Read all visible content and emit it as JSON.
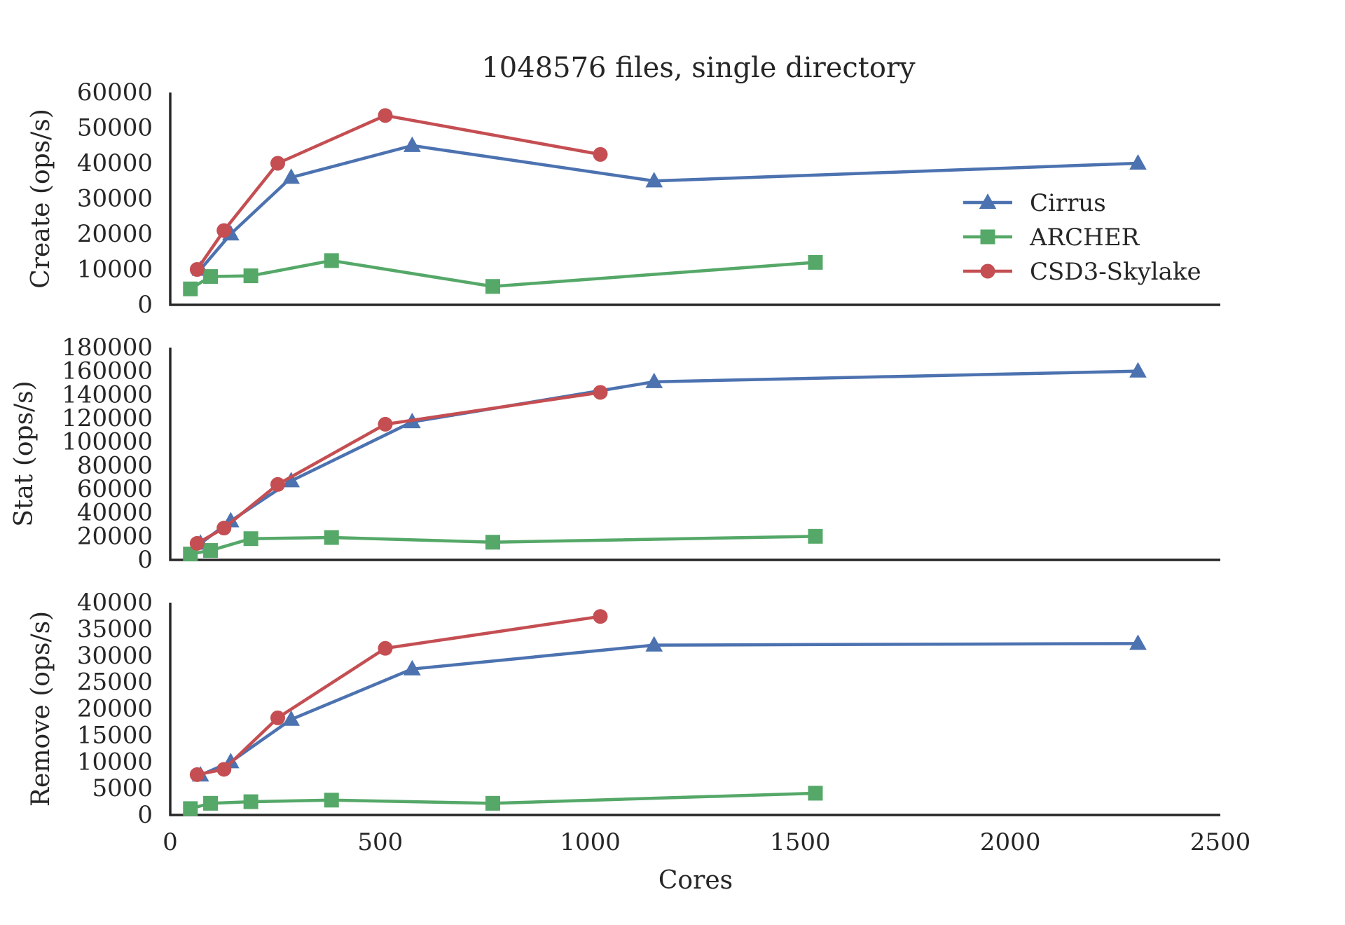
{
  "colors": {
    "text": "#262626",
    "axis": "#262626",
    "background": "#ffffff"
  },
  "chart_data": {
    "type": "line",
    "title": "1048576 files, single directory",
    "xlabel": "Cores",
    "xlim": [
      0,
      2500
    ],
    "xticks": [
      0,
      500,
      1000,
      1500,
      2000,
      2500
    ],
    "xtick_labels": [
      "0",
      "500",
      "1000",
      "1500",
      "2000",
      "2500"
    ],
    "grid": false,
    "legend": {
      "placement": "upper-right of top panel",
      "entries": [
        {
          "label": "Cirrus",
          "color": "#4c72b0",
          "marker": "triangle"
        },
        {
          "label": "ARCHER",
          "color": "#55a868",
          "marker": "square"
        },
        {
          "label": "CSD3-Skylake",
          "color": "#c44e52",
          "marker": "circle"
        }
      ]
    },
    "panels": [
      {
        "ylabel": "Create (ops/s)",
        "ylim": [
          0,
          60000
        ],
        "yticks": [
          0,
          10000,
          20000,
          30000,
          40000,
          50000,
          60000
        ],
        "ytick_labels": [
          "0",
          "10000",
          "20000",
          "30000",
          "40000",
          "50000",
          "60000"
        ],
        "series": [
          {
            "name": "Cirrus",
            "color": "#4c72b0",
            "marker": "triangle",
            "points": [
              [
                72,
                10000
              ],
              [
                144,
                20000
              ],
              [
                288,
                36000
              ],
              [
                576,
                45000
              ],
              [
                1152,
                35000
              ],
              [
                2304,
                40000
              ]
            ]
          },
          {
            "name": "ARCHER",
            "color": "#55a868",
            "marker": "square",
            "points": [
              [
                48,
                4500
              ],
              [
                96,
                8000
              ],
              [
                192,
                8200
              ],
              [
                384,
                12500
              ],
              [
                768,
                5200
              ],
              [
                1536,
                12000
              ]
            ]
          },
          {
            "name": "CSD3-Skylake",
            "color": "#c44e52",
            "marker": "circle",
            "points": [
              [
                64,
                10000
              ],
              [
                128,
                21000
              ],
              [
                256,
                40000
              ],
              [
                512,
                53500
              ],
              [
                1024,
                42500
              ]
            ]
          }
        ]
      },
      {
        "ylabel": "Stat (ops/s)",
        "ylim": [
          0,
          180000
        ],
        "yticks": [
          0,
          20000,
          40000,
          60000,
          80000,
          100000,
          120000,
          140000,
          160000,
          180000
        ],
        "ytick_labels": [
          "0",
          "20000",
          "40000",
          "60000",
          "80000",
          "100000",
          "120000",
          "140000",
          "160000",
          "180000"
        ],
        "series": [
          {
            "name": "Cirrus",
            "color": "#4c72b0",
            "marker": "triangle",
            "points": [
              [
                72,
                14000
              ],
              [
                144,
                33000
              ],
              [
                288,
                67000
              ],
              [
                576,
                117000
              ],
              [
                1152,
                151000
              ],
              [
                2304,
                160000
              ]
            ]
          },
          {
            "name": "ARCHER",
            "color": "#55a868",
            "marker": "square",
            "points": [
              [
                48,
                5000
              ],
              [
                96,
                8000
              ],
              [
                192,
                18000
              ],
              [
                384,
                19000
              ],
              [
                768,
                15000
              ],
              [
                1536,
                20000
              ]
            ]
          },
          {
            "name": "CSD3-Skylake",
            "color": "#c44e52",
            "marker": "circle",
            "points": [
              [
                64,
                14000
              ],
              [
                128,
                27000
              ],
              [
                256,
                64000
              ],
              [
                512,
                115000
              ],
              [
                1024,
                142000
              ]
            ]
          }
        ]
      },
      {
        "ylabel": "Remove (ops/s)",
        "ylim": [
          0,
          40000
        ],
        "yticks": [
          0,
          5000,
          10000,
          15000,
          20000,
          25000,
          30000,
          35000,
          40000
        ],
        "ytick_labels": [
          "0",
          "5000",
          "10000",
          "15000",
          "20000",
          "25000",
          "30000",
          "35000",
          "40000"
        ],
        "series": [
          {
            "name": "Cirrus",
            "color": "#4c72b0",
            "marker": "triangle",
            "points": [
              [
                72,
                7500
              ],
              [
                144,
                10000
              ],
              [
                288,
                18000
              ],
              [
                576,
                27500
              ],
              [
                1152,
                32000
              ],
              [
                2304,
                32300
              ]
            ]
          },
          {
            "name": "ARCHER",
            "color": "#55a868",
            "marker": "square",
            "points": [
              [
                48,
                1200
              ],
              [
                96,
                2200
              ],
              [
                192,
                2500
              ],
              [
                384,
                2800
              ],
              [
                768,
                2200
              ],
              [
                1536,
                4100
              ]
            ]
          },
          {
            "name": "CSD3-Skylake",
            "color": "#c44e52",
            "marker": "circle",
            "points": [
              [
                64,
                7600
              ],
              [
                128,
                8600
              ],
              [
                256,
                18300
              ],
              [
                512,
                31400
              ],
              [
                1024,
                37400
              ]
            ]
          }
        ]
      }
    ]
  }
}
